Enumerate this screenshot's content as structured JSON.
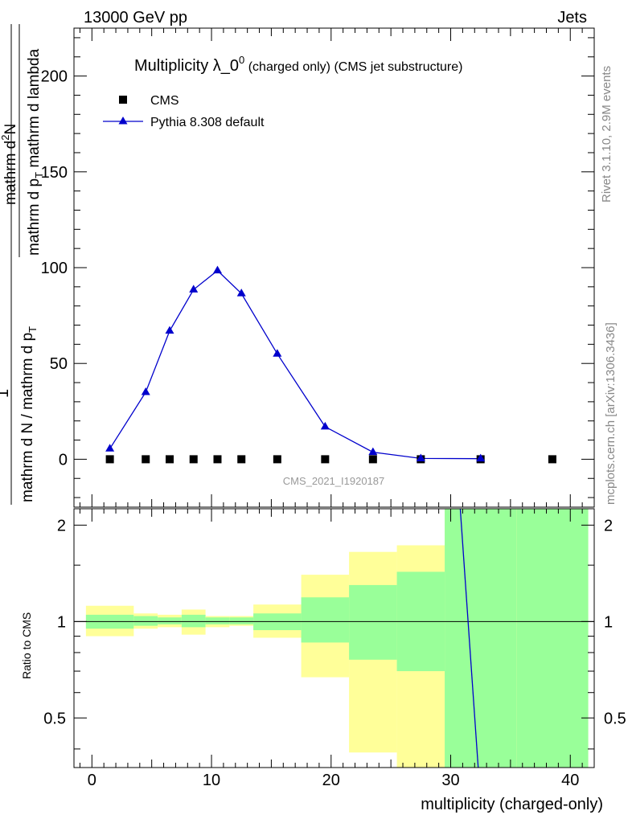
{
  "header": {
    "left": "13000 GeV pp",
    "right": "Jets"
  },
  "side_labels": {
    "rivet": "Rivet 3.1.10,  2.9M events",
    "mcplots": "mcplots.cern.ch [arXiv:1306.3436]"
  },
  "chart_data": [
    {
      "type": "line",
      "title_main": "Multiplicity λ_0",
      "title_sup": "0",
      "title_suffix": " (charged only) (CMS jet substructure)",
      "ylabel_numerator": "mathrm d",
      "ylabel_numerator_sup": "2",
      "ylabel_numerator_end": "N",
      "ylabel_denominator_a": "mathrm d p",
      "ylabel_denominator_sub": "T",
      "ylabel_denominator_b": " mathrm d lambda",
      "ylabel_factor_num": "1",
      "ylabel_factor_den_a": "mathrm d N / mathrm d p",
      "ylabel_factor_den_sub": "T",
      "analysis_label": "CMS_2021_I1920187",
      "xlim": [
        -1.5,
        42
      ],
      "ylim": [
        -25,
        225
      ],
      "yticks": [
        0,
        50,
        100,
        150,
        200
      ],
      "legend_position": "top-left",
      "series": [
        {
          "name": "CMS",
          "style": "square-marker",
          "color": "#000000",
          "x": [
            1.5,
            4.5,
            6.5,
            8.5,
            10.5,
            12.5,
            15.5,
            19.5,
            23.5,
            27.5,
            32.5,
            38.5
          ],
          "values": [
            0,
            0,
            0,
            0,
            0,
            0,
            0,
            0,
            0,
            0,
            0,
            0
          ]
        },
        {
          "name": "Pythia 8.308 default",
          "style": "line-triangle",
          "color": "#0000cc",
          "x": [
            1.5,
            4.5,
            6.5,
            8.5,
            10.5,
            12.5,
            15.5,
            19.5,
            23.5,
            27.5,
            32.5
          ],
          "values": [
            5.5,
            35,
            67,
            88.5,
            98.5,
            86.5,
            55,
            17,
            3.7,
            0.4,
            0.3
          ]
        }
      ]
    },
    {
      "type": "line",
      "ylabel": "Ratio to CMS",
      "xlabel": "multiplicity (charged-only)",
      "xlim": [
        -1.5,
        42
      ],
      "ylim": [
        0.35,
        2.25
      ],
      "yticks": [
        0.5,
        1,
        2
      ],
      "xticks": [
        0,
        10,
        20,
        30,
        40
      ],
      "bands": [
        {
          "x0": -0.5,
          "x1": 3.5,
          "inner": [
            0.95,
            1.05
          ],
          "outer": [
            0.9,
            1.12
          ]
        },
        {
          "x0": 3.5,
          "x1": 5.5,
          "inner": [
            0.97,
            1.04
          ],
          "outer": [
            0.95,
            1.06
          ]
        },
        {
          "x0": 5.5,
          "x1": 7.5,
          "inner": [
            0.98,
            1.03
          ],
          "outer": [
            0.96,
            1.05
          ]
        },
        {
          "x0": 7.5,
          "x1": 9.5,
          "inner": [
            0.96,
            1.05
          ],
          "outer": [
            0.91,
            1.09
          ]
        },
        {
          "x0": 9.5,
          "x1": 11.5,
          "inner": [
            0.98,
            1.03
          ],
          "outer": [
            0.96,
            1.04
          ]
        },
        {
          "x0": 11.5,
          "x1": 13.5,
          "inner": [
            0.98,
            1.03
          ],
          "outer": [
            0.97,
            1.04
          ]
        },
        {
          "x0": 13.5,
          "x1": 17.5,
          "inner": [
            0.94,
            1.06
          ],
          "outer": [
            0.89,
            1.13
          ]
        },
        {
          "x0": 17.5,
          "x1": 21.5,
          "inner": [
            0.86,
            1.19
          ],
          "outer": [
            0.67,
            1.4
          ]
        },
        {
          "x0": 21.5,
          "x1": 25.5,
          "inner": [
            0.76,
            1.3
          ],
          "outer": [
            0.39,
            1.65
          ]
        },
        {
          "x0": 25.5,
          "x1": 29.5,
          "inner": [
            0.7,
            1.43
          ],
          "outer": [
            0.35,
            1.73
          ]
        },
        {
          "x0": 29.5,
          "x1": 35.5,
          "inner": [
            0.35,
            2.25
          ],
          "outer": [
            0.35,
            2.25
          ]
        },
        {
          "x0": 35.5,
          "x1": 41.5,
          "inner": [
            0.35,
            2.25
          ],
          "outer": [
            0.35,
            2.25
          ]
        }
      ],
      "ratio_line": {
        "name": "Pythia 8.308 default",
        "x": [
          30.8,
          32.3
        ],
        "values": [
          2.25,
          0.35
        ]
      }
    }
  ],
  "colors": {
    "inner_band": "#99ff99",
    "outer_band": "#ffff99",
    "mc_line": "#0000cc",
    "data": "#000000",
    "side_text": "#888888"
  }
}
